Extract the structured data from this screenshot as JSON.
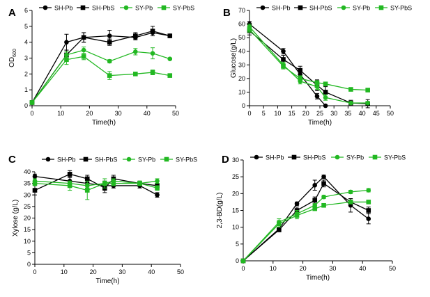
{
  "colors": {
    "sh": "#000000",
    "sy": "#22b822",
    "axis": "#000000"
  },
  "chart_data": [
    {
      "type": "line",
      "panel_label": "A",
      "xlabel": "Time(h)",
      "ylabel_main": "OD",
      "ylabel_sub": "600",
      "xlim": [
        0,
        50
      ],
      "ylim": [
        0,
        6
      ],
      "xticks": [
        0,
        10,
        20,
        30,
        40,
        50
      ],
      "yticks": [
        0,
        1,
        2,
        3,
        4,
        5,
        6
      ],
      "legend_position": "top",
      "series": [
        {
          "name": "SH-Pb",
          "group": "sh",
          "marker": "circle",
          "x": [
            0,
            12,
            18,
            27,
            36,
            42,
            48
          ],
          "y": [
            0.2,
            4.0,
            4.3,
            4.4,
            4.3,
            4.6,
            4.4
          ],
          "err": [
            0.05,
            0.5,
            0.3,
            0.35,
            0.15,
            0.2,
            0.1
          ]
        },
        {
          "name": "SH-PbS",
          "group": "sh",
          "marker": "square",
          "x": [
            0,
            12,
            18,
            27,
            36,
            42,
            48
          ],
          "y": [
            0.2,
            3.2,
            4.3,
            4.0,
            4.4,
            4.7,
            4.4
          ],
          "err": [
            0.05,
            0.3,
            0.3,
            0.2,
            0.2,
            0.3,
            0.1
          ]
        },
        {
          "name": "SY-Pb",
          "group": "sy",
          "marker": "circle",
          "x": [
            0,
            12,
            18,
            27,
            36,
            42,
            48
          ],
          "y": [
            0.2,
            3.2,
            3.5,
            2.8,
            3.4,
            3.3,
            2.95
          ],
          "err": [
            0.05,
            0.2,
            0.2,
            0.1,
            0.2,
            0.35,
            0.05
          ]
        },
        {
          "name": "SY-PbS",
          "group": "sy",
          "marker": "square",
          "x": [
            0,
            12,
            18,
            27,
            36,
            42,
            48
          ],
          "y": [
            0.2,
            2.9,
            3.1,
            1.9,
            2.0,
            2.1,
            1.9
          ],
          "err": [
            0.05,
            0.3,
            0.2,
            0.25,
            0.1,
            0.15,
            0.1
          ]
        }
      ]
    },
    {
      "type": "line",
      "panel_label": "B",
      "xlabel": "Time(h)",
      "ylabel_main": "Glucose(g/L)",
      "ylabel_sub": "",
      "xlim": [
        0,
        50
      ],
      "ylim": [
        0,
        70
      ],
      "xticks": [
        0,
        5,
        10,
        15,
        20,
        25,
        30,
        35,
        40,
        45,
        50
      ],
      "yticks": [
        0,
        10,
        20,
        30,
        40,
        50,
        60,
        70
      ],
      "legend_position": "top",
      "series": [
        {
          "name": "SH-Pb",
          "group": "sh",
          "marker": "circle",
          "x": [
            0,
            12,
            18,
            24,
            27
          ],
          "y": [
            60,
            40,
            23,
            7,
            0
          ],
          "err": [
            2,
            2,
            3,
            2,
            0.5
          ]
        },
        {
          "name": "SH-PbS",
          "group": "sh",
          "marker": "square",
          "x": [
            0,
            12,
            18,
            24,
            27,
            36,
            42
          ],
          "y": [
            55,
            34,
            26,
            15,
            10,
            2,
            1.5
          ],
          "err": [
            3,
            3,
            3,
            4,
            4,
            2,
            3
          ]
        },
        {
          "name": "SY-Pb",
          "group": "sy",
          "marker": "circle",
          "x": [
            0,
            12,
            18,
            24,
            27,
            36,
            42
          ],
          "y": [
            58,
            30,
            18,
            14,
            6,
            2,
            2
          ],
          "err": [
            2,
            2,
            2,
            2,
            2,
            1,
            1
          ]
        },
        {
          "name": "SY-PbS",
          "group": "sy",
          "marker": "square",
          "x": [
            0,
            12,
            18,
            24,
            27,
            36,
            42
          ],
          "y": [
            56,
            29,
            20,
            17,
            16,
            12,
            11.5
          ],
          "err": [
            2,
            2,
            2,
            1,
            1,
            1,
            1
          ]
        }
      ]
    },
    {
      "type": "line",
      "panel_label": "C",
      "xlabel": "Time(h)",
      "ylabel_main": "Xylose (g/L)",
      "ylabel_sub": "",
      "xlim": [
        0,
        50
      ],
      "ylim": [
        0,
        40
      ],
      "xticks": [
        0,
        10,
        20,
        30,
        40,
        50
      ],
      "yticks": [
        0,
        5,
        10,
        15,
        20,
        25,
        30,
        35,
        40
      ],
      "legend_position": "top",
      "series": [
        {
          "name": "SH-Pb",
          "group": "sh",
          "marker": "circle",
          "x": [
            0,
            12,
            18,
            24,
            27,
            36,
            42
          ],
          "y": [
            38,
            36,
            35,
            34,
            34,
            34,
            30
          ],
          "err": [
            1,
            2,
            2,
            2,
            1,
            1,
            1
          ]
        },
        {
          "name": "SH-PbS",
          "group": "sh",
          "marker": "square",
          "x": [
            0,
            12,
            18,
            24,
            27,
            36,
            42
          ],
          "y": [
            32,
            39,
            37,
            33,
            37,
            35,
            34
          ],
          "err": [
            2,
            1.5,
            1.5,
            2,
            1.5,
            1,
            1
          ]
        },
        {
          "name": "SY-Pb",
          "group": "sy",
          "marker": "circle",
          "x": [
            0,
            12,
            18,
            24,
            27,
            36,
            42
          ],
          "y": [
            36,
            35,
            34,
            35,
            36,
            35,
            36
          ],
          "err": [
            1,
            1,
            1,
            1,
            1,
            1,
            1
          ]
        },
        {
          "name": "SY-PbS",
          "group": "sy",
          "marker": "square",
          "x": [
            0,
            12,
            18,
            24,
            27,
            36,
            42
          ],
          "y": [
            35,
            34,
            32,
            35,
            35,
            35,
            33
          ],
          "err": [
            1,
            2,
            4,
            2,
            1,
            1,
            1
          ]
        }
      ]
    },
    {
      "type": "line",
      "panel_label": "D",
      "xlabel": "Time(h)",
      "ylabel_main": "2,3-BD(g/L)",
      "ylabel_sub": "",
      "xlim": [
        0,
        50
      ],
      "ylim": [
        0,
        30
      ],
      "xticks": [
        0,
        10,
        20,
        30,
        40,
        50
      ],
      "yticks": [
        0,
        5,
        10,
        15,
        20,
        25,
        30
      ],
      "legend_position": "top",
      "series": [
        {
          "name": "SH-Pb",
          "group": "sh",
          "marker": "circle",
          "x": [
            0,
            12,
            18,
            24,
            27,
            36,
            42
          ],
          "y": [
            0,
            9.5,
            17,
            22.5,
            25,
            16.5,
            12.5
          ],
          "err": [
            0,
            0.5,
            0.5,
            1.5,
            0.5,
            2,
            1.5
          ]
        },
        {
          "name": "SH-PbS",
          "group": "sh",
          "marker": "square",
          "x": [
            0,
            12,
            18,
            24,
            27,
            36,
            42
          ],
          "y": [
            0,
            9.2,
            15,
            18,
            23,
            17.5,
            15
          ],
          "err": [
            0,
            0.5,
            1,
            1,
            1,
            1,
            1
          ]
        },
        {
          "name": "SY-Pb",
          "group": "sy",
          "marker": "circle",
          "x": [
            0,
            12,
            18,
            24,
            27,
            36,
            42
          ],
          "y": [
            0,
            11.5,
            14,
            16.5,
            19,
            20.5,
            21
          ],
          "err": [
            0,
            1,
            1,
            0.5,
            0.5,
            0.5,
            0.5
          ]
        },
        {
          "name": "SY-PbS",
          "group": "sy",
          "marker": "square",
          "x": [
            0,
            12,
            18,
            24,
            27,
            36,
            42
          ],
          "y": [
            0,
            11,
            13.5,
            15.5,
            16.5,
            17.5,
            17.5
          ],
          "err": [
            0,
            1,
            1,
            0.5,
            0.5,
            0.5,
            0.5
          ]
        }
      ]
    }
  ]
}
